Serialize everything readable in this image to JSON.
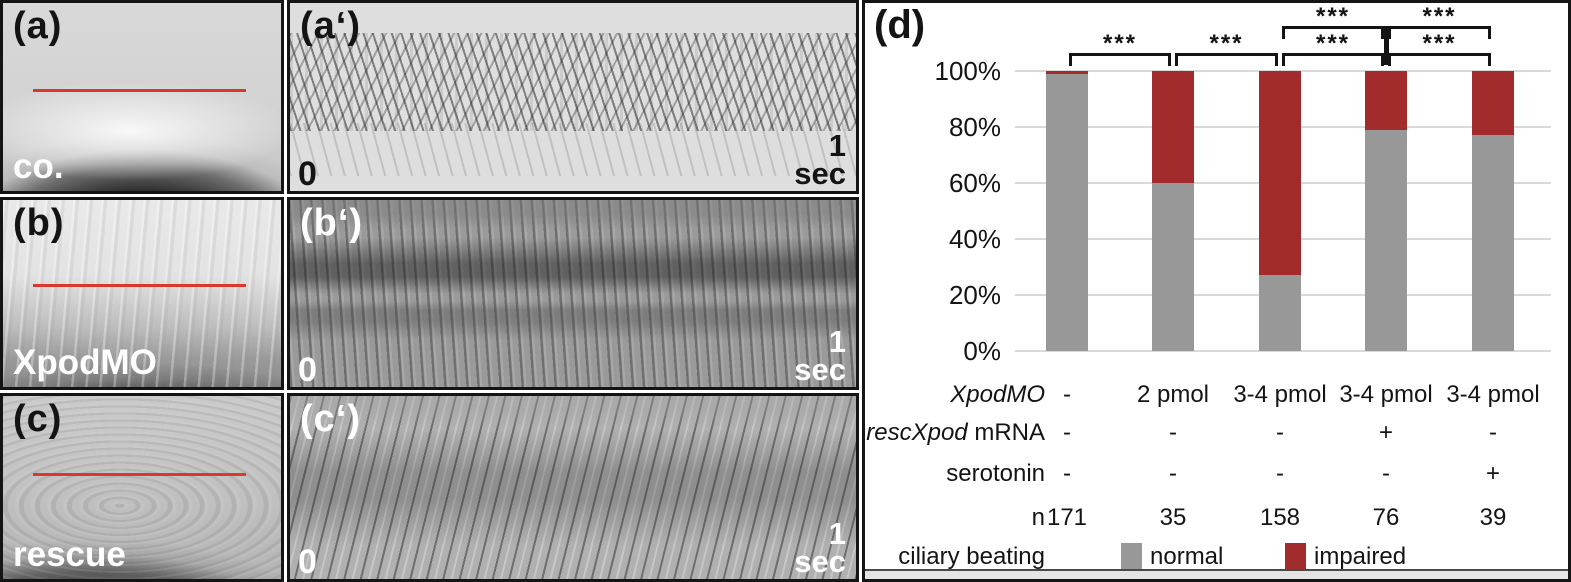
{
  "figure": {
    "scan_line_color": "#d9382c",
    "panels_left": [
      {
        "letter": "(a)",
        "sample": "co."
      },
      {
        "letter": "(b)",
        "sample": "XpodMO"
      },
      {
        "letter": "(c)",
        "sample": "rescue"
      }
    ],
    "kymographs": [
      {
        "letter": "(a‘)",
        "t0": "0",
        "t1": "1",
        "t1_unit": "sec"
      },
      {
        "letter": "(b‘)",
        "t0": "0",
        "t1": "1",
        "t1_unit": "sec"
      },
      {
        "letter": "(c‘)",
        "t0": "0",
        "t1": "1",
        "t1_unit": "sec"
      }
    ],
    "panel_d_letter": "(d)"
  },
  "chart_data": {
    "type": "bar",
    "subtype": "stacked-percent",
    "categories": [
      "-",
      "2 pmol",
      "3-4 pmol",
      "3-4 pmol",
      "3-4 pmol"
    ],
    "series": [
      {
        "name": "normal",
        "color": "#989898",
        "values": [
          99,
          60,
          27,
          79,
          77
        ]
      },
      {
        "name": "impaired",
        "color": "#a22b2b",
        "values": [
          1,
          40,
          73,
          21,
          23
        ]
      }
    ],
    "ylim": [
      0,
      100
    ],
    "y_ticks": [
      "0%",
      "20%",
      "40%",
      "60%",
      "80%",
      "100%"
    ],
    "grid": true,
    "grid_color": "#d9d9d9",
    "legend_position": "bottom",
    "significance": [
      {
        "bars": [
          0,
          1
        ],
        "row": "lower",
        "label": "***"
      },
      {
        "bars": [
          1,
          2
        ],
        "row": "lower",
        "label": "***"
      },
      {
        "bars": [
          2,
          3
        ],
        "row": "lower",
        "label": "***"
      },
      {
        "bars": [
          3,
          4
        ],
        "row": "lower",
        "label": "***"
      },
      {
        "bars": [
          2,
          3
        ],
        "row": "upper",
        "label": "***"
      },
      {
        "bars": [
          3,
          4
        ],
        "row": "upper",
        "label": "***"
      }
    ],
    "condition_rows": [
      {
        "parts": [
          {
            "text": "XpodMO",
            "italic": true
          }
        ],
        "values": [
          "-",
          "2 pmol",
          "3-4 pmol",
          "3-4 pmol",
          "3-4 pmol"
        ]
      },
      {
        "parts": [
          {
            "text": "rescXpod",
            "italic": true
          },
          {
            "text": " mRNA",
            "italic": false
          }
        ],
        "values": [
          "-",
          "-",
          "-",
          "+",
          "-"
        ]
      },
      {
        "parts": [
          {
            "text": "serotonin",
            "italic": false
          }
        ],
        "values": [
          "-",
          "-",
          "-",
          "-",
          "+"
        ]
      },
      {
        "parts": [
          {
            "text": "n",
            "italic": false
          }
        ],
        "values": [
          "171",
          "35",
          "158",
          "76",
          "39"
        ]
      }
    ],
    "legend": {
      "title": "ciliary beating",
      "items": [
        {
          "label": "normal",
          "color": "#989898"
        },
        {
          "label": "impaired",
          "color": "#a22b2b"
        }
      ]
    }
  }
}
